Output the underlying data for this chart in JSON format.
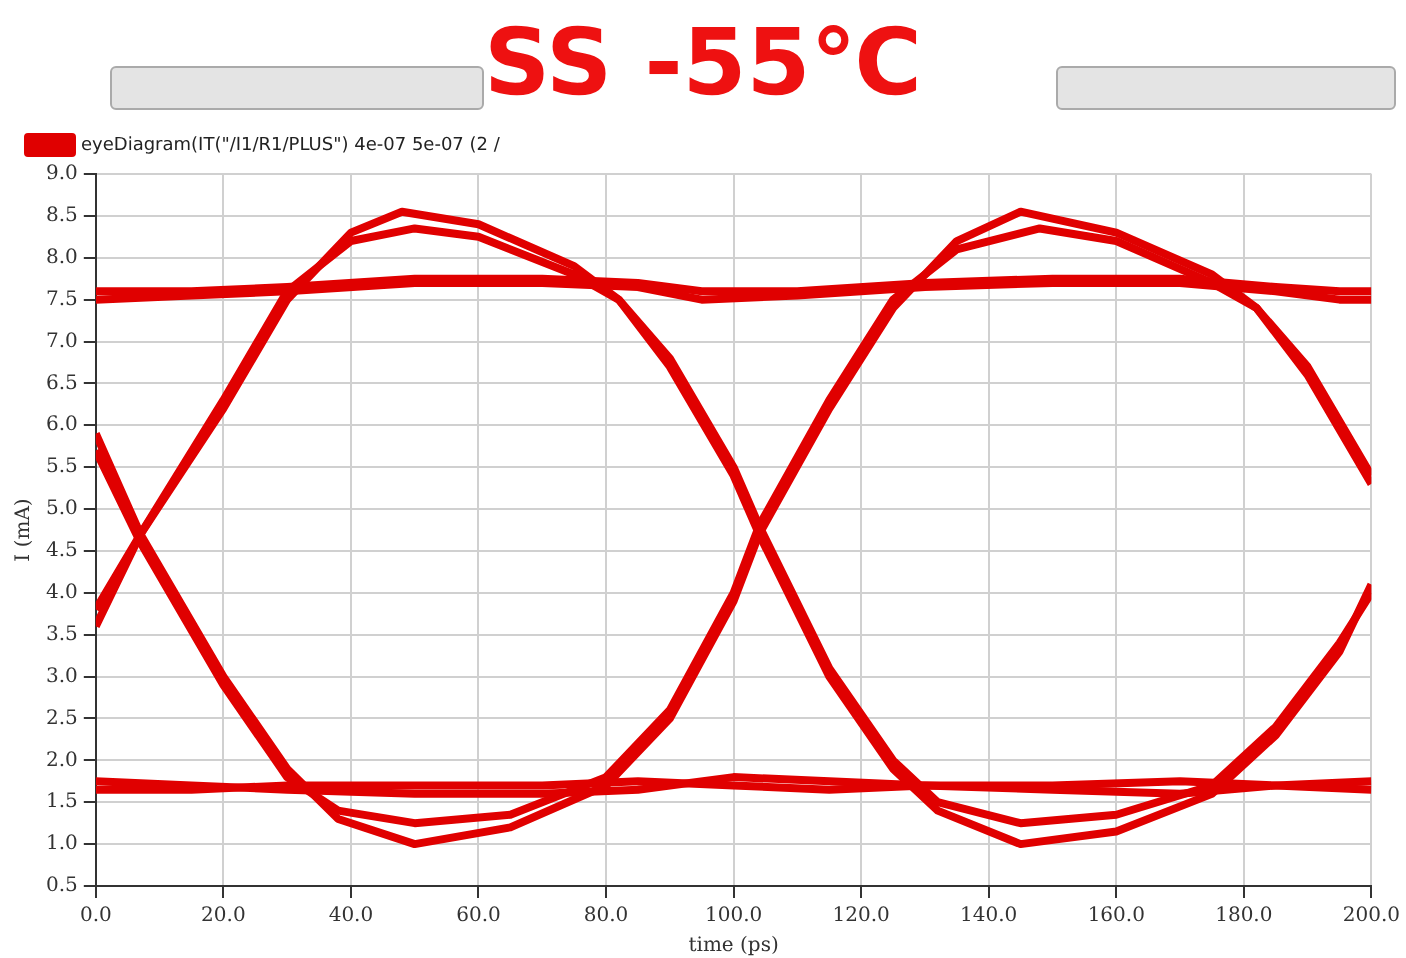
{
  "chart_data": {
    "type": "line",
    "title": "SS -55℃",
    "xlabel": "time (ps)",
    "ylabel": "I (mA)",
    "series": [
      {
        "name": "eyeDiagram(IT(\"/I1/R1/PLUS\") 4e-07 5e-07 (2 /",
        "color": "#e00000",
        "x": [
          0,
          15,
          30,
          50,
          70,
          85,
          95,
          110,
          130,
          150,
          170,
          185,
          195,
          200
        ],
        "values": [
          7.5,
          7.55,
          7.6,
          7.7,
          7.7,
          7.65,
          7.5,
          7.55,
          7.65,
          7.7,
          7.7,
          7.6,
          7.5,
          7.5
        ]
      },
      {
        "color": "#e00000",
        "x": [
          0,
          15,
          30,
          50,
          70,
          85,
          95,
          110,
          130,
          150,
          170,
          185,
          195,
          200
        ],
        "values": [
          7.6,
          7.6,
          7.65,
          7.75,
          7.75,
          7.7,
          7.6,
          7.6,
          7.7,
          7.75,
          7.75,
          7.65,
          7.6,
          7.6
        ]
      },
      {
        "color": "#e00000",
        "x": [
          0,
          15,
          30,
          50,
          70,
          85,
          100,
          115,
          130,
          150,
          170,
          185,
          200
        ],
        "values": [
          1.75,
          1.7,
          1.65,
          1.6,
          1.6,
          1.65,
          1.8,
          1.75,
          1.7,
          1.65,
          1.6,
          1.7,
          1.75
        ]
      },
      {
        "color": "#e00000",
        "x": [
          0,
          15,
          30,
          50,
          70,
          85,
          100,
          115,
          130,
          150,
          170,
          185,
          200
        ],
        "values": [
          1.65,
          1.65,
          1.7,
          1.7,
          1.7,
          1.75,
          1.7,
          1.65,
          1.7,
          1.7,
          1.75,
          1.7,
          1.65
        ]
      },
      {
        "color": "#e00000",
        "x": [
          0,
          7,
          20,
          30,
          40,
          48,
          60,
          75,
          82,
          90,
          100,
          104,
          115,
          125,
          132,
          145,
          160,
          175,
          185,
          195,
          200
        ],
        "values": [
          3.6,
          4.7,
          6.2,
          7.5,
          8.3,
          8.55,
          8.4,
          7.9,
          7.5,
          6.7,
          5.4,
          4.7,
          3.0,
          1.9,
          1.4,
          1.0,
          1.15,
          1.6,
          2.3,
          3.3,
          4.1
        ]
      },
      {
        "color": "#e00000",
        "x": [
          0,
          7,
          20,
          30,
          40,
          50,
          60,
          75,
          82,
          90,
          100,
          104,
          115,
          125,
          132,
          145,
          160,
          175,
          185,
          195,
          200
        ],
        "values": [
          3.8,
          4.7,
          6.3,
          7.6,
          8.2,
          8.35,
          8.25,
          7.8,
          7.5,
          6.8,
          5.5,
          4.8,
          3.1,
          2.0,
          1.5,
          1.25,
          1.35,
          1.7,
          2.4,
          3.4,
          4.0
        ]
      },
      {
        "color": "#e00000",
        "x": [
          0,
          7,
          20,
          30,
          38,
          50,
          65,
          80,
          90,
          100,
          104,
          115,
          125,
          135,
          145,
          160,
          175,
          182,
          190,
          200
        ],
        "values": [
          5.9,
          4.7,
          3.0,
          1.9,
          1.3,
          1.0,
          1.2,
          1.7,
          2.5,
          3.9,
          4.7,
          6.2,
          7.4,
          8.2,
          8.55,
          8.3,
          7.8,
          7.4,
          6.7,
          5.4
        ]
      },
      {
        "color": "#e00000",
        "x": [
          0,
          7,
          20,
          30,
          38,
          50,
          65,
          80,
          90,
          100,
          104,
          115,
          125,
          135,
          148,
          160,
          175,
          182,
          190,
          200
        ],
        "values": [
          5.7,
          4.6,
          2.9,
          1.8,
          1.4,
          1.25,
          1.35,
          1.8,
          2.6,
          4.0,
          4.8,
          6.3,
          7.5,
          8.1,
          8.35,
          8.2,
          7.7,
          7.4,
          6.6,
          5.3
        ]
      }
    ],
    "xlim": [
      0,
      200
    ],
    "xticks": [
      {
        "value": 0,
        "label": "0.0"
      },
      {
        "value": 20,
        "label": "20.0"
      },
      {
        "value": 40,
        "label": "40.0"
      },
      {
        "value": 60,
        "label": "60.0"
      },
      {
        "value": 80,
        "label": "80.0"
      },
      {
        "value": 100,
        "label": "100.0"
      },
      {
        "value": 120,
        "label": "120.0"
      },
      {
        "value": 140,
        "label": "140.0"
      },
      {
        "value": 160,
        "label": "160.0"
      },
      {
        "value": 180,
        "label": "180.0"
      },
      {
        "value": 200,
        "label": "200.0"
      }
    ],
    "ylim": [
      0.5,
      9
    ],
    "yticks": [
      {
        "value": 0.5,
        "label": "0.5"
      },
      {
        "value": 1,
        "label": "1.0"
      },
      {
        "value": 1.5,
        "label": "1.5"
      },
      {
        "value": 2,
        "label": "2.0"
      },
      {
        "value": 2.5,
        "label": "2.5"
      },
      {
        "value": 3,
        "label": "3.0"
      },
      {
        "value": 3.5,
        "label": "3.5"
      },
      {
        "value": 4,
        "label": "4.0"
      },
      {
        "value": 4.5,
        "label": "4.5"
      },
      {
        "value": 5,
        "label": "5.0"
      },
      {
        "value": 5.5,
        "label": "5.5"
      },
      {
        "value": 6,
        "label": "6.0"
      },
      {
        "value": 6.5,
        "label": "6.5"
      },
      {
        "value": 7,
        "label": "7.0"
      },
      {
        "value": 7.5,
        "label": "7.5"
      },
      {
        "value": 8,
        "label": "8.0"
      },
      {
        "value": 8.5,
        "label": "8.5"
      },
      {
        "value": 9,
        "label": "9.0"
      }
    ],
    "grid": true,
    "legend": "top left",
    "marker": "none",
    "line_style": "solid"
  }
}
